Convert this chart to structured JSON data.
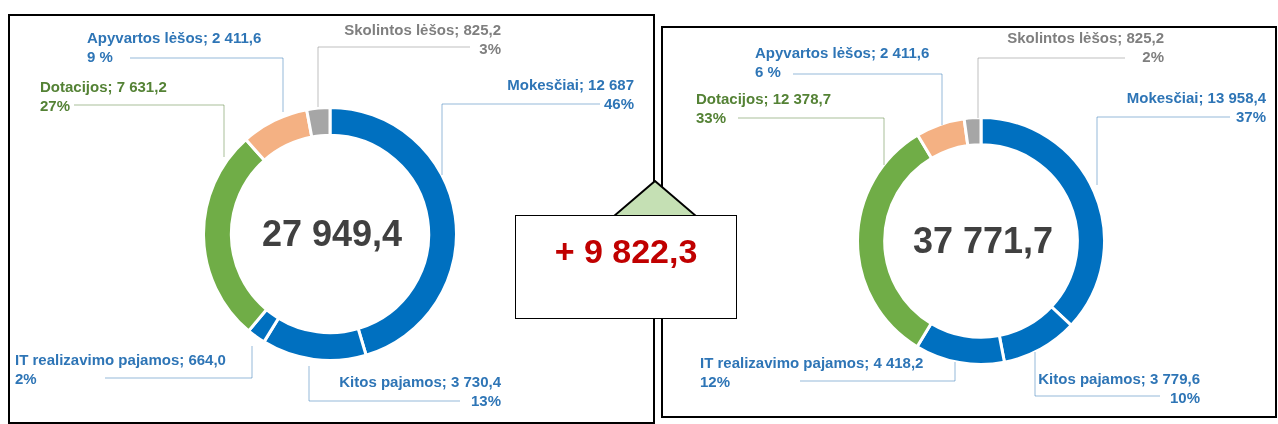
{
  "chart_data": [
    {
      "type": "donut",
      "title": "27 949,4",
      "categories": [
        "Mokesčiai",
        "Kitos pajamos",
        "IT realizavimo pajamos",
        "Dotacijos",
        "Apyvartos lėšos",
        "Skolintos lėšos"
      ],
      "values": [
        12687,
        3730.4,
        664.0,
        7631.2,
        2411.6,
        825.2
      ],
      "colors": [
        "#0070c0",
        "#0070c0",
        "#0070c0",
        "#70ad47",
        "#f4b183",
        "#a6a6a6"
      ],
      "value_labels": [
        "12 687\n46%",
        "3 730,4\n13%",
        "664,0\n2%",
        "7 631,2\n27%",
        "2 411,6\n9 %",
        "825,2\n3%"
      ]
    },
    {
      "type": "other",
      "title": "+ 9 822,3"
    },
    {
      "type": "donut",
      "title": "37 771,7",
      "categories": [
        "Mokesčiai",
        "Kitos pajamos",
        "IT realizavimo pajamos",
        "Dotacijos",
        "Apyvartos lėšos",
        "Skolintos lėšos"
      ],
      "values": [
        13958.4,
        3779.6,
        4418.2,
        12378.7,
        2411.6,
        825.2
      ],
      "colors": [
        "#0070c0",
        "#0070c0",
        "#0070c0",
        "#70ad47",
        "#f4b183",
        "#a6a6a6"
      ],
      "value_labels": [
        "13 958,4\n37%",
        "3 779,6\n10%",
        "4 418,2\n12%",
        "12 378,7\n33%",
        "2 411,6\n6 %",
        "825,2\n2%"
      ]
    }
  ]
}
